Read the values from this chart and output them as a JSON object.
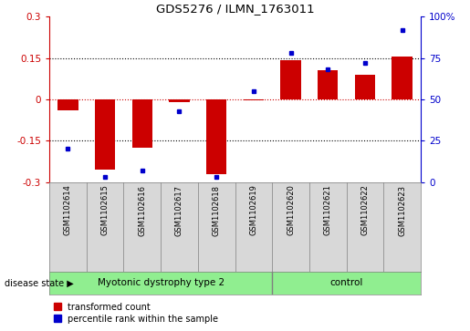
{
  "title": "GDS5276 / ILMN_1763011",
  "samples": [
    "GSM1102614",
    "GSM1102615",
    "GSM1102616",
    "GSM1102617",
    "GSM1102618",
    "GSM1102619",
    "GSM1102620",
    "GSM1102621",
    "GSM1102622",
    "GSM1102623"
  ],
  "red_values": [
    -0.04,
    -0.255,
    -0.175,
    -0.01,
    -0.27,
    -0.005,
    0.142,
    0.105,
    0.09,
    0.155
  ],
  "blue_values": [
    20,
    3,
    7,
    43,
    3,
    55,
    78,
    68,
    72,
    92
  ],
  "groups": [
    {
      "label": "Myotonic dystrophy type 2",
      "start": 0,
      "end": 6
    },
    {
      "label": "control",
      "start": 6,
      "end": 10
    }
  ],
  "disease_state_label": "disease state",
  "ylim_left": [
    -0.3,
    0.3
  ],
  "ylim_right": [
    0,
    100
  ],
  "yticks_left": [
    -0.3,
    -0.15,
    0.0,
    0.15,
    0.3
  ],
  "yticks_right": [
    0,
    25,
    50,
    75,
    100
  ],
  "left_tick_labels": [
    "-0.3",
    "-0.15",
    "0",
    "0.15",
    "0.3"
  ],
  "right_tick_labels": [
    "0",
    "25",
    "50",
    "75",
    "100%"
  ],
  "red_color": "#CC0000",
  "blue_color": "#0000CC",
  "label_color_left": "#CC0000",
  "label_color_right": "#0000CC",
  "legend_red": "transformed count",
  "legend_blue": "percentile rank within the sample",
  "sample_bg_color": "#D8D8D8",
  "plot_bg": "#FFFFFF",
  "group_color": "#90EE90"
}
